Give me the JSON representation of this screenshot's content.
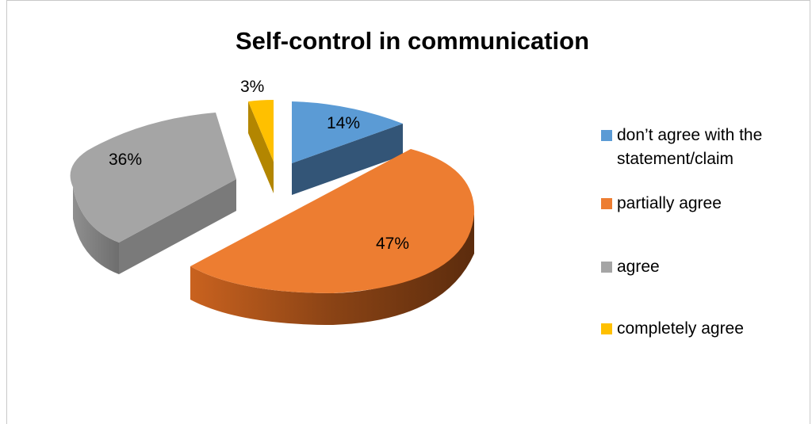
{
  "chart_data": {
    "type": "pie",
    "title": "Self-control in communication",
    "categories": [
      "don’t agree with the statement/claim",
      "partially agree",
      "agree",
      "completely agree"
    ],
    "values": [
      14,
      47,
      36,
      3
    ],
    "data_labels": [
      "14%",
      "47%",
      "36%",
      "3%"
    ],
    "colors": [
      "#5b9bd5",
      "#ed7d31",
      "#a5a5a5",
      "#ffc000"
    ],
    "exploded": true,
    "three_d": true,
    "legend_position": "right"
  }
}
